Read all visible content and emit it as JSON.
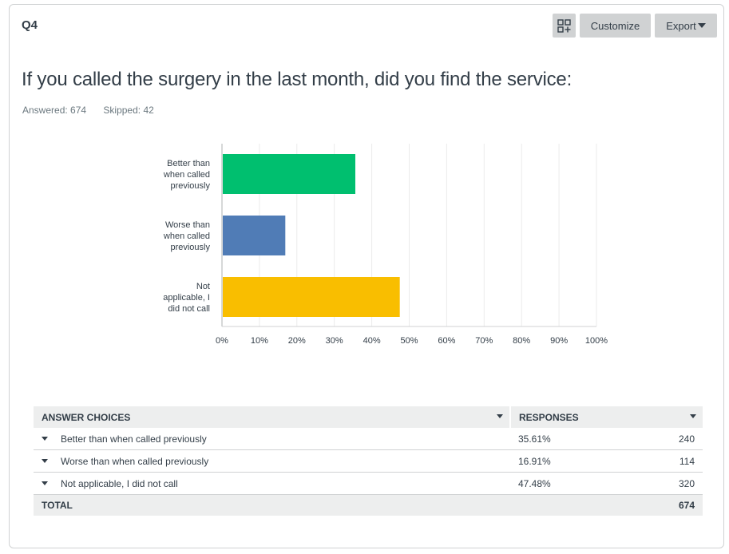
{
  "header": {
    "question_number": "Q4",
    "buttons": {
      "grid_icon": "add-grid-icon",
      "customize_label": "Customize",
      "export_label": "Export"
    }
  },
  "question": {
    "title": "If you called the surgery in the last month, did you find the service:",
    "answered": "Answered: 674",
    "skipped": "Skipped: 42"
  },
  "chart_data": {
    "type": "bar",
    "orientation": "horizontal",
    "title": "",
    "xlabel": "",
    "ylabel": "",
    "categories": [
      [
        "Better than",
        "when called",
        "previously"
      ],
      [
        "Worse than",
        "when called",
        "previously"
      ],
      [
        "Not",
        "applicable, I",
        "did not call"
      ]
    ],
    "values": [
      35.61,
      16.91,
      47.48
    ],
    "colors": [
      "#00bf6f",
      "#507cb6",
      "#f9be00"
    ],
    "xlim": [
      0,
      100
    ],
    "xticks": [
      "0%",
      "10%",
      "20%",
      "30%",
      "40%",
      "50%",
      "60%",
      "70%",
      "80%",
      "90%",
      "100%"
    ],
    "grid": true,
    "legend": "none"
  },
  "table": {
    "headers": {
      "choices": "ANSWER CHOICES",
      "responses": "RESPONSES"
    },
    "rows": [
      {
        "choice": "Better than when called previously",
        "percent": "35.61%",
        "count": "240"
      },
      {
        "choice": "Worse than when called previously",
        "percent": "16.91%",
        "count": "114"
      },
      {
        "choice": "Not applicable, I did not call",
        "percent": "47.48%",
        "count": "320"
      }
    ],
    "total_label": "TOTAL",
    "total_count": "674"
  }
}
